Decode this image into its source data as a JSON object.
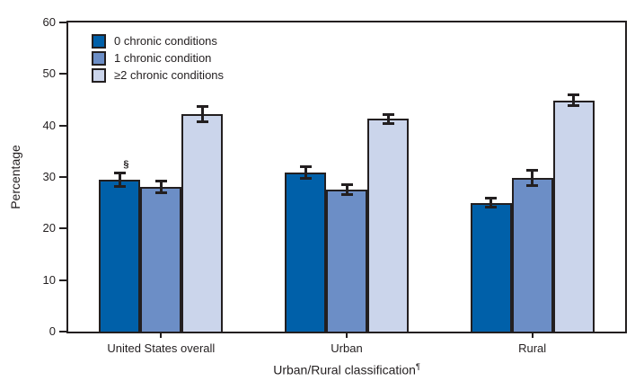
{
  "chart_data": {
    "type": "bar",
    "title": "",
    "categories": [
      "United States overall",
      "Urban",
      "Rural"
    ],
    "series": [
      {
        "name": "0 chronic conditions",
        "color": "#0060A9",
        "values": [
          29.5,
          30.9,
          25.0
        ],
        "error_margins": [
          1.3,
          1.1,
          0.9
        ]
      },
      {
        "name": "1 chronic condition",
        "color": "#6C8EC6",
        "values": [
          28.1,
          27.6,
          29.8
        ],
        "error_margins": [
          1.2,
          1.0,
          1.5
        ]
      },
      {
        "name": "≥2 chronic conditions",
        "color": "#CBD5EB",
        "values": [
          42.2,
          41.3,
          44.9
        ],
        "error_margins": [
          1.5,
          0.9,
          1.0
        ]
      }
    ],
    "ylabel": "Percentage",
    "xlabel": "Urban/Rural classification",
    "xlabel_superscript": "¶",
    "ylim": [
      0,
      60
    ],
    "ytick_interval": 10,
    "ytick_labels": [
      "0",
      "10",
      "20",
      "30",
      "40",
      "50",
      "60"
    ],
    "grid": false,
    "plot_border": "full box",
    "legend_position": "top-left inside plot",
    "error_bars": "black I-beam error bars on every bar",
    "annotations": [
      {
        "text": "§",
        "group_index": 0,
        "series_index": 0,
        "position": "above error bar of first bar"
      }
    ],
    "ink_color": "#231F20",
    "background_color": "#FFFFFF"
  }
}
